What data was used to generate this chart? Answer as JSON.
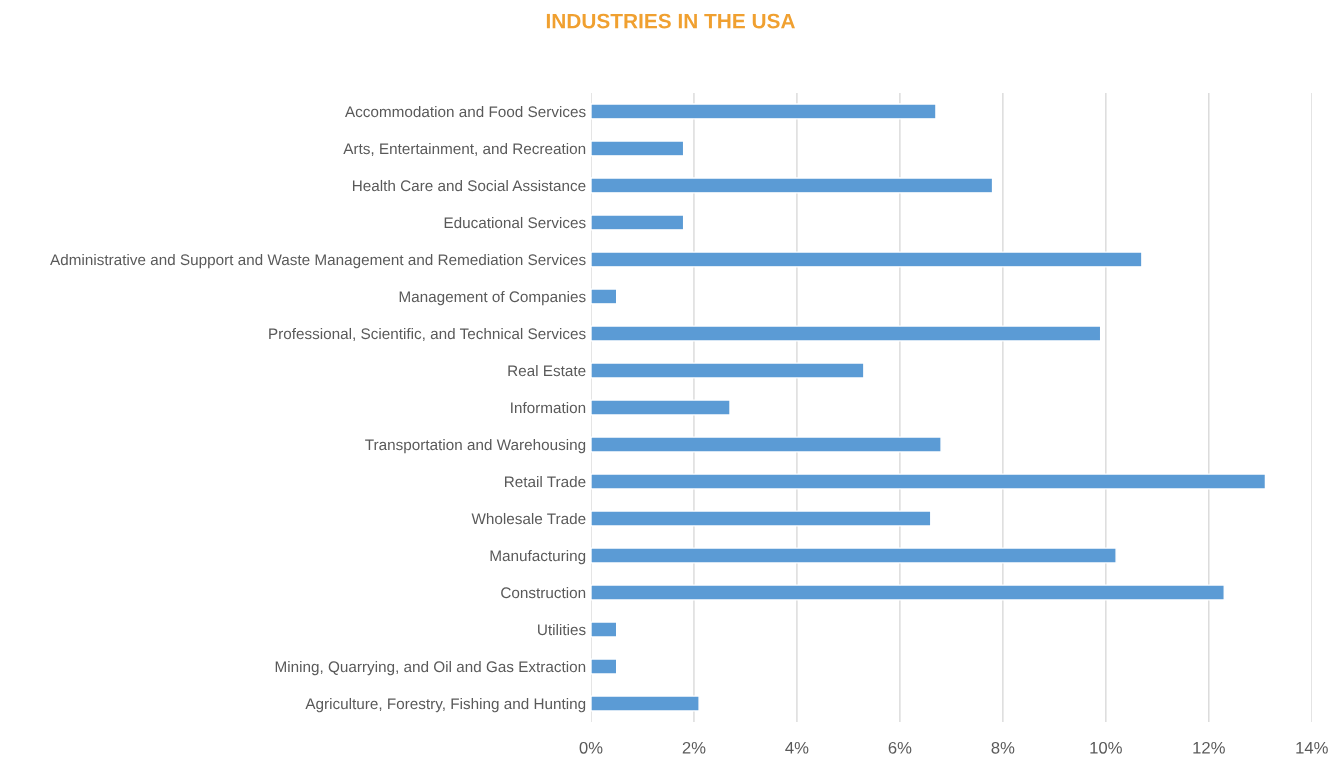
{
  "chart_data": {
    "type": "bar",
    "orientation": "horizontal",
    "title": "INDUSTRIES IN THE USA",
    "categories": [
      "Accommodation and Food Services",
      "Arts, Entertainment, and Recreation",
      "Health Care and Social Assistance",
      "Educational Services",
      "Administrative and Support and Waste Management and Remediation Services",
      "Management of Companies",
      "Professional, Scientific, and Technical Services",
      "Real Estate",
      "Information",
      "Transportation and Warehousing",
      "Retail Trade",
      "Wholesale Trade",
      "Manufacturing",
      "Construction",
      "Utilities",
      "Mining, Quarrying, and Oil and Gas Extraction",
      "Agriculture, Forestry, Fishing and Hunting"
    ],
    "values": [
      6.7,
      1.8,
      7.8,
      1.8,
      10.7,
      0.5,
      9.9,
      5.3,
      2.7,
      6.8,
      13.1,
      6.6,
      10.2,
      12.3,
      0.5,
      0.5,
      2.1
    ],
    "color": "#5b9bd5",
    "xlim": [
      0,
      14
    ],
    "xticks": [
      {
        "value": 0,
        "label": "0%"
      },
      {
        "value": 2,
        "label": "2%"
      },
      {
        "value": 4,
        "label": "4%"
      },
      {
        "value": 6,
        "label": "6%"
      },
      {
        "value": 8,
        "label": "8%"
      },
      {
        "value": 10,
        "label": "10%"
      },
      {
        "value": 12,
        "label": "12%"
      },
      {
        "value": 14,
        "label": "14%"
      }
    ],
    "grid": "x",
    "legend": false
  }
}
